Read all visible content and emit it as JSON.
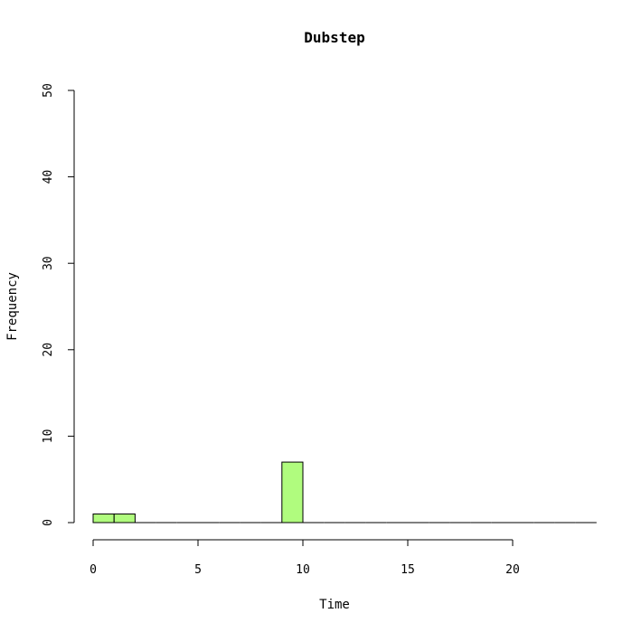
{
  "chart_data": {
    "type": "bar",
    "subtype": "histogram",
    "title": "Dubstep",
    "xlabel": "Time",
    "ylabel": "Frequency",
    "xlim": [
      0,
      24
    ],
    "ylim": [
      0,
      50
    ],
    "x_ticks": [
      0,
      5,
      10,
      15,
      20
    ],
    "y_ticks": [
      0,
      10,
      20,
      30,
      40,
      50
    ],
    "bin_width": 1,
    "bins": [
      {
        "x0": 0,
        "x1": 1,
        "count": 1
      },
      {
        "x0": 1,
        "x1": 2,
        "count": 1
      },
      {
        "x0": 9,
        "x1": 10,
        "count": 7
      }
    ],
    "bar_color": "#b0fc7e",
    "grid": false,
    "legend": "none"
  }
}
